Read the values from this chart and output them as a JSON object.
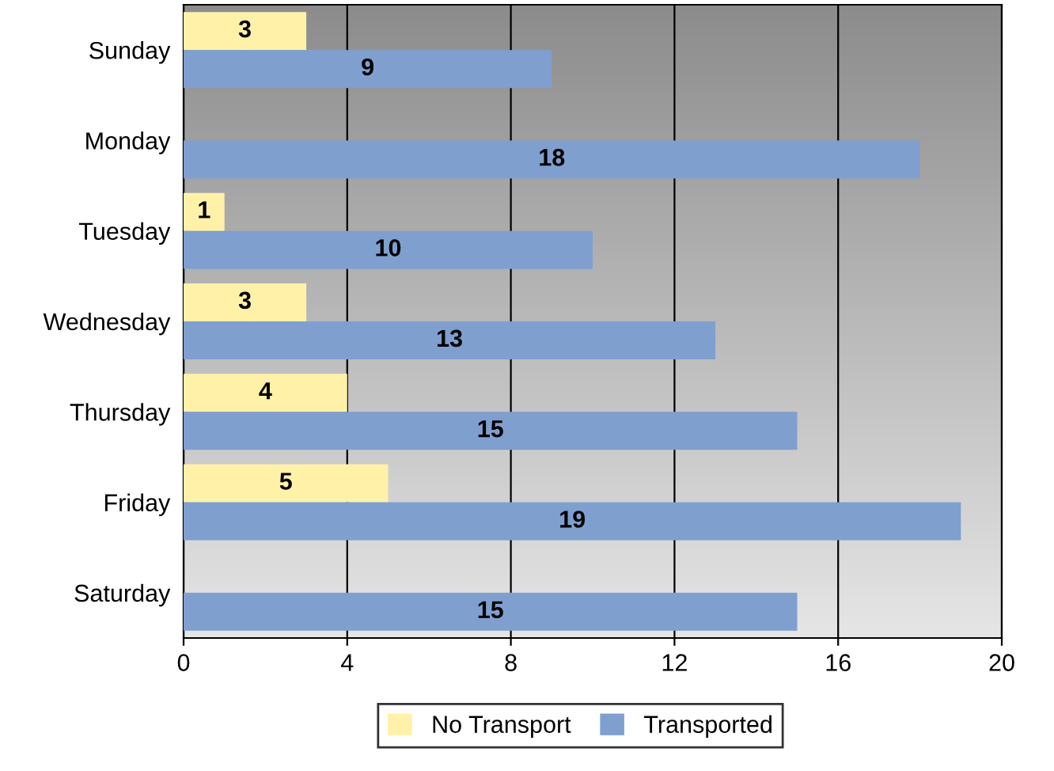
{
  "chart_data": {
    "type": "bar",
    "orientation": "horizontal",
    "categories": [
      "Sunday",
      "Monday",
      "Tuesday",
      "Wednesday",
      "Thursday",
      "Friday",
      "Saturday"
    ],
    "series": [
      {
        "name": "No Transport",
        "color": "#fff2a8",
        "values": [
          3,
          null,
          1,
          3,
          4,
          5,
          null
        ]
      },
      {
        "name": "Transported",
        "color": "#7f9fcf",
        "values": [
          9,
          18,
          10,
          13,
          15,
          19,
          15
        ]
      }
    ],
    "xlim": [
      0,
      20
    ],
    "xticks": [
      0,
      4,
      8,
      12,
      16,
      20
    ],
    "grid": "x",
    "legend": "bottom",
    "data_labels": true
  }
}
